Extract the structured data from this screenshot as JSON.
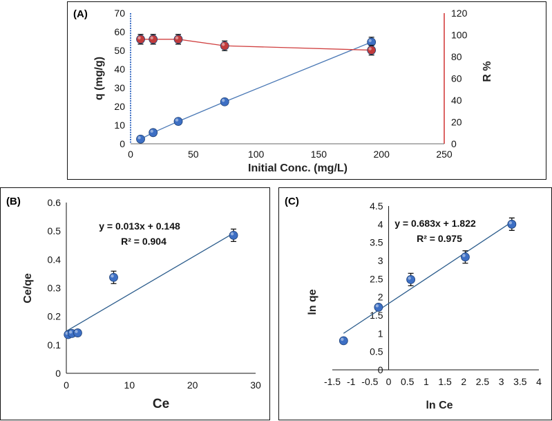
{
  "chart_data": [
    {
      "panel_label": "(A)",
      "type": "line",
      "xlabel": "Initial Conc. (mg/L)",
      "ylabel": "q (mg/g)",
      "y2label": "R %",
      "xlim": [
        0,
        250
      ],
      "ylim": [
        0,
        70
      ],
      "y2lim": [
        0,
        120
      ],
      "xticks": [
        "0",
        "50",
        "100",
        "150",
        "200",
        "250"
      ],
      "yticks": [
        "0",
        "10",
        "20",
        "30",
        "40",
        "50",
        "60",
        "70"
      ],
      "y2ticks": [
        "0",
        "20",
        "40",
        "60",
        "80",
        "100",
        "120"
      ],
      "series": [
        {
          "axis": "left",
          "color": "#3d6fc4",
          "line": "#4a78b5",
          "x": [
            8,
            18,
            38,
            75,
            192
          ],
          "y": [
            2.5,
            6,
            12,
            22.5,
            54.5
          ]
        },
        {
          "axis": "right",
          "color": "#c23b3b",
          "line": "#d04040",
          "x": [
            8,
            18,
            38,
            75,
            192
          ],
          "y": [
            96,
            96,
            96,
            90,
            86
          ]
        }
      ]
    },
    {
      "panel_label": "(B)",
      "type": "scatter",
      "xlabel": "Ce",
      "ylabel": "Ce/qe",
      "xlim": [
        0,
        30
      ],
      "ylim": [
        0,
        0.6
      ],
      "xticks": [
        "0",
        "10",
        "20",
        "30"
      ],
      "yticks": [
        "0",
        "0.1",
        "0.2",
        "0.3",
        "0.4",
        "0.5",
        "0.6"
      ],
      "equation": "y = 0.013x + 0.148",
      "r2": "R² = 0.904",
      "points": {
        "x": [
          0.3,
          0.9,
          1.8,
          7.5,
          26.5
        ],
        "y": [
          0.136,
          0.14,
          0.142,
          0.337,
          0.485
        ]
      },
      "error_points": [
        3,
        4
      ],
      "fit": {
        "slope": 0.013,
        "intercept": 0.148,
        "x0": 0,
        "x1": 26.5
      },
      "marker": "#3d6fc4",
      "line": "#2b5c8c"
    },
    {
      "panel_label": "(C)",
      "type": "scatter",
      "xlabel": "ln Ce",
      "ylabel": "ln qe",
      "xlim": [
        -1.5,
        4
      ],
      "ylim": [
        0,
        4.5
      ],
      "xticks": [
        "-1.5",
        "-1",
        "-0.5",
        "0",
        "0.5",
        "1",
        "1.5",
        "2",
        "2.5",
        "3",
        "3.5",
        "4"
      ],
      "yticks": [
        "0",
        "0.5",
        "1",
        "1.5",
        "2",
        "2.5",
        "3",
        "3.5",
        "4",
        "4.5"
      ],
      "equation": "y = 0.683x + 1.822",
      "r2": "R² = 0.975",
      "points": {
        "x": [
          -1.2,
          -0.27,
          0.59,
          2.04,
          3.28
        ],
        "y": [
          0.8,
          1.72,
          2.48,
          3.1,
          4.0
        ]
      },
      "error_points": [
        2,
        3,
        4
      ],
      "fit": {
        "slope": 0.683,
        "intercept": 1.822,
        "x0": -1.2,
        "x1": 3.28
      },
      "marker": "#3d6fc4",
      "line": "#2b5c8c"
    }
  ]
}
